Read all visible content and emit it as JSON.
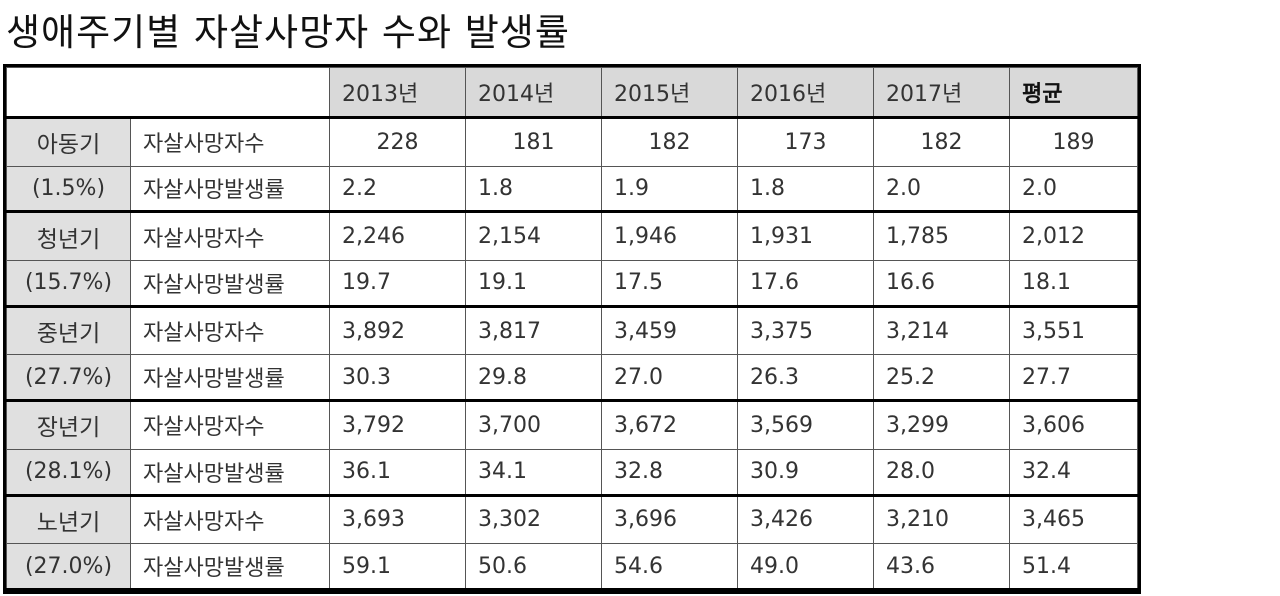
{
  "title": "생애주기별 자살사망자 수와 발생률",
  "header": {
    "blank": "",
    "columns": [
      "2013년",
      "2014년",
      "2015년",
      "2016년",
      "2017년",
      "평균"
    ]
  },
  "groups": [
    {
      "stage": "아동기",
      "share": "(1.5%)",
      "rows": [
        {
          "metric": "자살사망자수",
          "values": [
            "228",
            "181",
            "182",
            "173",
            "182",
            "189"
          ]
        },
        {
          "metric": "자살사망발생률",
          "values": [
            "2.2",
            "1.8",
            "1.9",
            "1.8",
            "2.0",
            "2.0"
          ]
        }
      ]
    },
    {
      "stage": "청년기",
      "share": "(15.7%)",
      "rows": [
        {
          "metric": "자살사망자수",
          "values": [
            "2,246",
            "2,154",
            "1,946",
            "1,931",
            "1,785",
            "2,012"
          ]
        },
        {
          "metric": "자살사망발생률",
          "values": [
            "19.7",
            "19.1",
            "17.5",
            "17.6",
            "16.6",
            "18.1"
          ]
        }
      ]
    },
    {
      "stage": "중년기",
      "share": "(27.7%)",
      "rows": [
        {
          "metric": "자살사망자수",
          "values": [
            "3,892",
            "3,817",
            "3,459",
            "3,375",
            "3,214",
            "3,551"
          ]
        },
        {
          "metric": "자살사망발생률",
          "values": [
            "30.3",
            "29.8",
            "27.0",
            "26.3",
            "25.2",
            "27.7"
          ]
        }
      ]
    },
    {
      "stage": "장년기",
      "share": "(28.1%)",
      "rows": [
        {
          "metric": "자살사망자수",
          "values": [
            "3,792",
            "3,700",
            "3,672",
            "3,569",
            "3,299",
            "3,606"
          ]
        },
        {
          "metric": "자살사망발생률",
          "values": [
            "36.1",
            "34.1",
            "32.8",
            "30.9",
            "28.0",
            "32.4"
          ]
        }
      ]
    },
    {
      "stage": "노년기",
      "share": "(27.0%)",
      "rows": [
        {
          "metric": "자살사망자수",
          "values": [
            "3,693",
            "3,302",
            "3,696",
            "3,426",
            "3,210",
            "3,465"
          ]
        },
        {
          "metric": "자살사망발생률",
          "values": [
            "59.1",
            "50.6",
            "54.6",
            "49.0",
            "43.6",
            "51.4"
          ]
        }
      ]
    }
  ]
}
